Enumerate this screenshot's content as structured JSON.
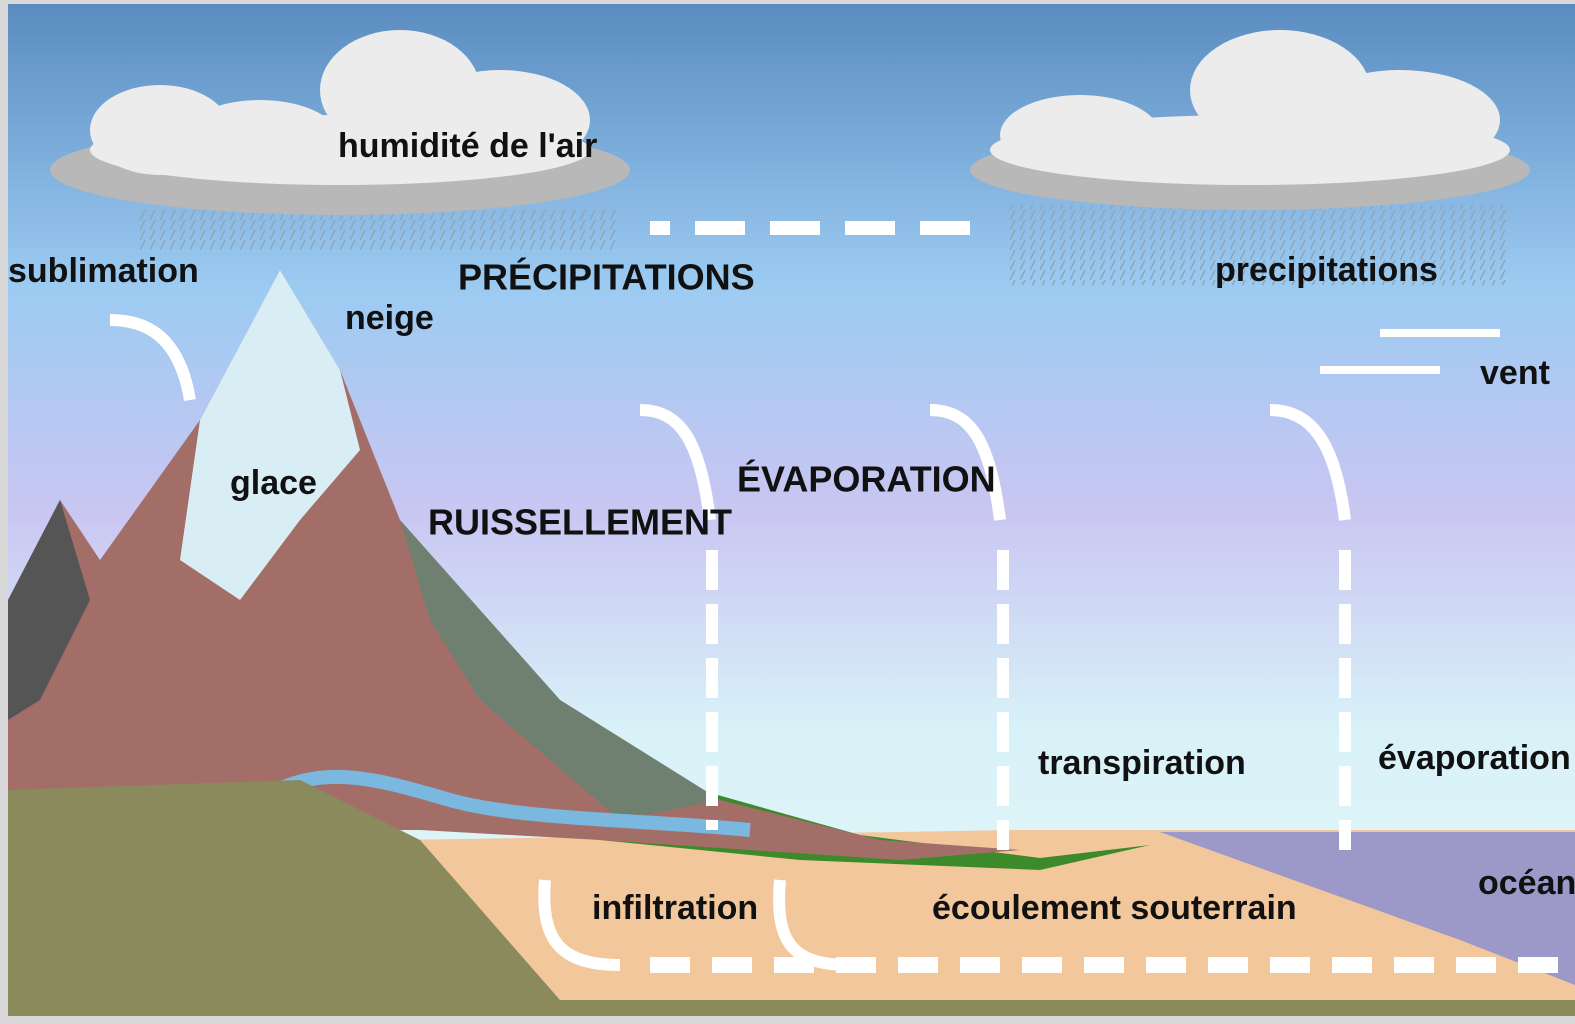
{
  "labels": [
    "humidité de l'air",
    "sublimation",
    "PRÉCIPITATIONS",
    "neige",
    "precipitations",
    "vent",
    "glace",
    "RUISSELLEMENT",
    "ÉVAPORATION",
    "transpiration",
    "évaporation",
    "océan",
    "infiltration",
    "écoulement souterrain"
  ]
}
